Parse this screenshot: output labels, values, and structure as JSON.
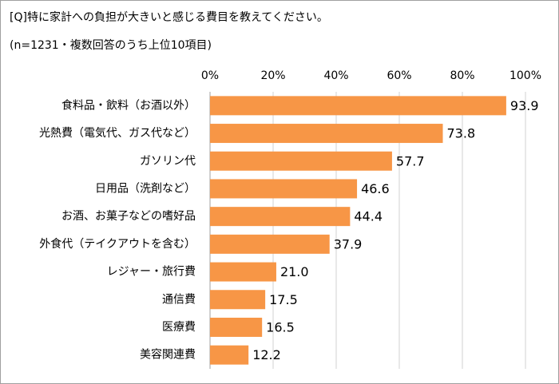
{
  "chart_data": {
    "type": "bar",
    "orientation": "horizontal",
    "title": "[Q]特に家計への負担が大きいと感じる費目を教えてください。",
    "subtitle": "(n=1231・複数回答のうち上位10項目)",
    "categories": [
      "食料品・飲料（お酒以外）",
      "光熱費（電気代、ガス代など）",
      "ガソリン代",
      "日用品（洗剤など）",
      "お酒、お菓子などの嗜好品",
      "外食代（テイクアウトを含む）",
      "レジャー・旅行費",
      "通信費",
      "医療費",
      "美容関連費"
    ],
    "values": [
      93.9,
      73.8,
      57.7,
      46.6,
      44.4,
      37.9,
      21.0,
      17.5,
      16.5,
      12.2
    ],
    "value_labels": [
      "93.9",
      "73.8",
      "57.7",
      "46.6",
      "44.4",
      "37.9",
      "21.0",
      "17.5",
      "16.5",
      "12.2"
    ],
    "color": "#f79646",
    "xlim": [
      0,
      100
    ],
    "xticks": [
      {
        "value": 0,
        "label": "0%"
      },
      {
        "value": 20,
        "label": "20%"
      },
      {
        "value": 40,
        "label": "40%"
      },
      {
        "value": 60,
        "label": "60%"
      },
      {
        "value": 80,
        "label": "80%"
      },
      {
        "value": 100,
        "label": "100%"
      }
    ],
    "grid": true
  }
}
